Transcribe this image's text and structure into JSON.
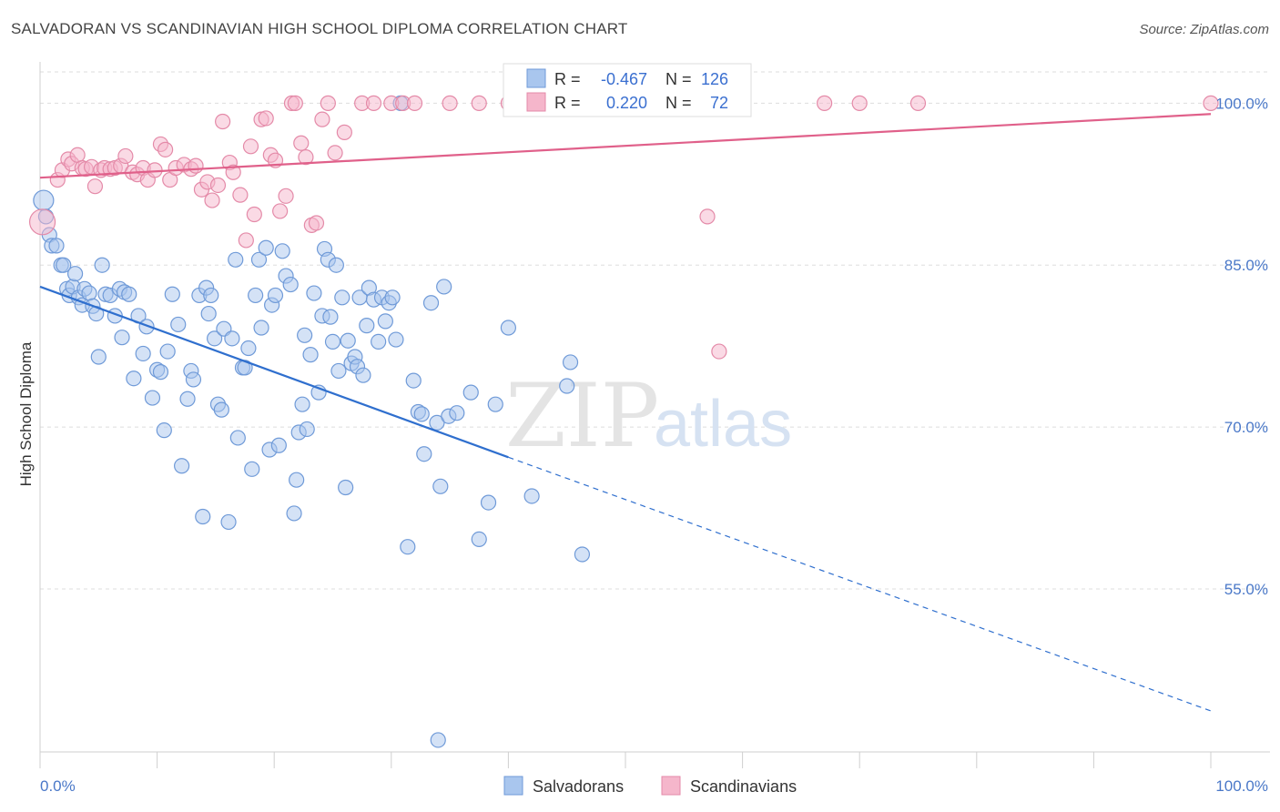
{
  "title": "SALVADORAN VS SCANDINAVIAN HIGH SCHOOL DIPLOMA CORRELATION CHART",
  "source": "Source: ZipAtlas.com",
  "watermark": {
    "zip": "ZIP",
    "atlas": "atlas"
  },
  "colors": {
    "blue_fill": "#a9c6ee",
    "blue_stroke": "#6f9ad8",
    "blue_line": "#2f6fce",
    "pink_fill": "#f5b6cb",
    "pink_stroke": "#e48aa8",
    "pink_line": "#e0608a",
    "tick_text": "#4a78c8",
    "grid": "#dddddd"
  },
  "legend": {
    "rows": [
      {
        "r_label": "R =",
        "r_value": "-0.467",
        "n_label": "N =",
        "n_value": "126",
        "color": "blue"
      },
      {
        "r_label": "R =",
        "r_value": "0.220",
        "n_label": "N =",
        "n_value": "72",
        "color": "pink"
      }
    ]
  },
  "chart_data": {
    "type": "scatter",
    "title": "SALVADORAN VS SCANDINAVIAN HIGH SCHOOL DIPLOMA CORRELATION CHART",
    "xlabel": "",
    "ylabel": "High School Diploma",
    "xlim": [
      0,
      100
    ],
    "ylim": [
      39.9,
      104.5
    ],
    "x_tick_labels": [
      "0.0%",
      "100.0%"
    ],
    "y_ticks": [
      55.0,
      70.0,
      85.0,
      100.0
    ],
    "y_tick_labels": [
      "55.0%",
      "70.0%",
      "85.0%",
      "100.0%"
    ],
    "grid": true,
    "legend_position": "top-center",
    "series": [
      {
        "name": "Salvadorans",
        "color": "blue",
        "r": -0.467,
        "n": 126,
        "trend": {
          "x0": 0,
          "y0": 83.0,
          "x1": 40,
          "y1": 67.2,
          "dash_to_x": 100,
          "dash_to_y": 43.7
        },
        "points": [
          [
            0.3,
            91.0
          ],
          [
            0.5,
            89.5
          ],
          [
            0.8,
            87.8
          ],
          [
            1.0,
            86.8
          ],
          [
            1.4,
            86.8
          ],
          [
            1.8,
            85.0
          ],
          [
            2.0,
            85.0
          ],
          [
            2.3,
            82.8
          ],
          [
            2.5,
            82.2
          ],
          [
            2.8,
            83.0
          ],
          [
            3.0,
            84.2
          ],
          [
            3.3,
            82.0
          ],
          [
            3.6,
            81.3
          ],
          [
            3.8,
            82.8
          ],
          [
            4.2,
            82.4
          ],
          [
            4.5,
            81.2
          ],
          [
            4.8,
            80.5
          ],
          [
            5.0,
            76.5
          ],
          [
            5.3,
            85.0
          ],
          [
            5.6,
            82.3
          ],
          [
            6.0,
            82.2
          ],
          [
            6.4,
            80.3
          ],
          [
            6.8,
            82.8
          ],
          [
            7.0,
            78.3
          ],
          [
            7.2,
            82.5
          ],
          [
            7.6,
            82.3
          ],
          [
            8.0,
            74.5
          ],
          [
            8.4,
            80.3
          ],
          [
            8.8,
            76.8
          ],
          [
            9.1,
            79.3
          ],
          [
            9.6,
            72.7
          ],
          [
            10.0,
            75.3
          ],
          [
            10.3,
            75.1
          ],
          [
            10.6,
            69.7
          ],
          [
            10.9,
            77.0
          ],
          [
            11.3,
            82.3
          ],
          [
            11.8,
            79.5
          ],
          [
            12.1,
            66.4
          ],
          [
            12.6,
            72.6
          ],
          [
            12.9,
            75.2
          ],
          [
            13.1,
            74.4
          ],
          [
            13.6,
            82.2
          ],
          [
            13.9,
            61.7
          ],
          [
            14.2,
            82.9
          ],
          [
            14.4,
            80.5
          ],
          [
            14.6,
            82.2
          ],
          [
            14.9,
            78.2
          ],
          [
            15.2,
            72.1
          ],
          [
            15.5,
            71.6
          ],
          [
            15.7,
            79.1
          ],
          [
            16.1,
            61.2
          ],
          [
            16.4,
            78.2
          ],
          [
            16.7,
            85.5
          ],
          [
            16.9,
            69.0
          ],
          [
            17.3,
            75.5
          ],
          [
            17.5,
            75.5
          ],
          [
            17.8,
            77.3
          ],
          [
            18.1,
            66.1
          ],
          [
            18.4,
            82.2
          ],
          [
            18.7,
            85.5
          ],
          [
            18.9,
            79.2
          ],
          [
            19.3,
            86.6
          ],
          [
            19.6,
            67.9
          ],
          [
            19.8,
            81.3
          ],
          [
            20.1,
            82.2
          ],
          [
            20.4,
            68.3
          ],
          [
            20.7,
            86.3
          ],
          [
            21.0,
            84.0
          ],
          [
            21.4,
            83.2
          ],
          [
            21.7,
            62.0
          ],
          [
            21.9,
            65.1
          ],
          [
            22.1,
            69.5
          ],
          [
            22.4,
            72.1
          ],
          [
            22.6,
            78.5
          ],
          [
            22.8,
            69.8
          ],
          [
            23.1,
            76.7
          ],
          [
            23.4,
            82.4
          ],
          [
            23.8,
            73.2
          ],
          [
            24.1,
            80.3
          ],
          [
            24.3,
            86.5
          ],
          [
            24.6,
            85.5
          ],
          [
            24.8,
            80.2
          ],
          [
            25.0,
            77.9
          ],
          [
            25.3,
            85.0
          ],
          [
            25.5,
            75.2
          ],
          [
            25.8,
            82.0
          ],
          [
            26.1,
            64.4
          ],
          [
            26.3,
            78.0
          ],
          [
            26.6,
            75.9
          ],
          [
            26.9,
            76.5
          ],
          [
            27.1,
            75.6
          ],
          [
            27.3,
            82.0
          ],
          [
            27.6,
            74.8
          ],
          [
            27.9,
            79.4
          ],
          [
            28.1,
            82.9
          ],
          [
            28.5,
            81.8
          ],
          [
            28.9,
            77.9
          ],
          [
            29.2,
            82.0
          ],
          [
            29.5,
            79.8
          ],
          [
            29.8,
            81.5
          ],
          [
            30.1,
            82.0
          ],
          [
            30.4,
            78.1
          ],
          [
            30.8,
            100.0
          ],
          [
            31.4,
            58.9
          ],
          [
            31.9,
            74.3
          ],
          [
            32.3,
            71.4
          ],
          [
            32.6,
            71.2
          ],
          [
            32.8,
            67.5
          ],
          [
            33.4,
            81.5
          ],
          [
            33.9,
            70.4
          ],
          [
            34.2,
            64.5
          ],
          [
            34.5,
            83.0
          ],
          [
            34.9,
            71.0
          ],
          [
            35.6,
            71.3
          ],
          [
            36.8,
            73.2
          ],
          [
            37.5,
            59.6
          ],
          [
            38.3,
            63.0
          ],
          [
            38.9,
            72.1
          ],
          [
            40.0,
            79.2
          ],
          [
            42.0,
            63.6
          ],
          [
            45.0,
            73.8
          ],
          [
            45.3,
            76.0
          ],
          [
            46.3,
            58.2
          ],
          [
            34.0,
            41.0
          ]
        ]
      },
      {
        "name": "Scandinavians",
        "color": "pink",
        "r": 0.22,
        "n": 72,
        "trend": {
          "x0": 0,
          "y0": 93.1,
          "x1": 100,
          "y1": 99.0
        },
        "points": [
          [
            0.2,
            89.0
          ],
          [
            1.5,
            92.9
          ],
          [
            1.9,
            93.8
          ],
          [
            2.4,
            94.8
          ],
          [
            2.7,
            94.4
          ],
          [
            3.2,
            95.2
          ],
          [
            3.6,
            94.0
          ],
          [
            3.9,
            93.9
          ],
          [
            4.4,
            94.1
          ],
          [
            4.7,
            92.3
          ],
          [
            5.2,
            93.8
          ],
          [
            5.5,
            94.0
          ],
          [
            6.0,
            93.9
          ],
          [
            6.4,
            94.0
          ],
          [
            6.9,
            94.2
          ],
          [
            7.3,
            95.1
          ],
          [
            7.9,
            93.6
          ],
          [
            8.3,
            93.4
          ],
          [
            8.8,
            94.0
          ],
          [
            9.2,
            92.9
          ],
          [
            9.8,
            93.8
          ],
          [
            10.3,
            96.2
          ],
          [
            10.7,
            95.7
          ],
          [
            11.1,
            92.9
          ],
          [
            11.6,
            94.0
          ],
          [
            12.3,
            94.3
          ],
          [
            12.9,
            93.9
          ],
          [
            13.3,
            94.2
          ],
          [
            13.8,
            92.0
          ],
          [
            14.3,
            92.7
          ],
          [
            14.7,
            91.0
          ],
          [
            15.2,
            92.4
          ],
          [
            15.6,
            98.3
          ],
          [
            16.2,
            94.5
          ],
          [
            16.5,
            93.6
          ],
          [
            17.1,
            91.5
          ],
          [
            17.6,
            87.3
          ],
          [
            18.0,
            96.0
          ],
          [
            18.3,
            89.7
          ],
          [
            18.9,
            98.5
          ],
          [
            19.3,
            98.6
          ],
          [
            19.7,
            95.2
          ],
          [
            20.1,
            94.7
          ],
          [
            20.5,
            90.0
          ],
          [
            21.0,
            91.4
          ],
          [
            21.5,
            100.0
          ],
          [
            21.8,
            100.0
          ],
          [
            22.3,
            96.3
          ],
          [
            22.7,
            95.0
          ],
          [
            23.2,
            88.7
          ],
          [
            23.6,
            88.9
          ],
          [
            24.1,
            98.5
          ],
          [
            24.6,
            100.0
          ],
          [
            25.2,
            95.4
          ],
          [
            26.0,
            97.3
          ],
          [
            27.5,
            100.0
          ],
          [
            28.5,
            100.0
          ],
          [
            30.0,
            100.0
          ],
          [
            31.0,
            100.0
          ],
          [
            32.0,
            100.0
          ],
          [
            35.0,
            100.0
          ],
          [
            37.5,
            100.0
          ],
          [
            40.0,
            100.0
          ],
          [
            43.5,
            100.0
          ],
          [
            48.0,
            100.0
          ],
          [
            52.0,
            100.0
          ],
          [
            57.0,
            89.5
          ],
          [
            58.0,
            77.0
          ],
          [
            67.0,
            100.0
          ],
          [
            70.0,
            100.0
          ],
          [
            75.0,
            100.0
          ],
          [
            100.0,
            100.0
          ]
        ]
      }
    ]
  }
}
